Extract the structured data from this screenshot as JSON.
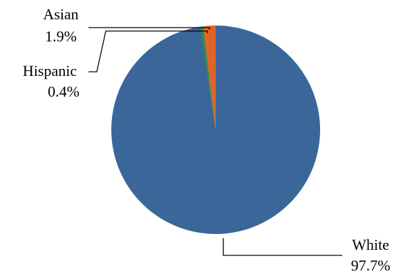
{
  "chart_data": {
    "type": "pie",
    "slices": [
      {
        "label": "White",
        "value": 97.7,
        "value_label": "97.7%",
        "color": "#3A6699"
      },
      {
        "label": "Hispanic",
        "value": 0.4,
        "value_label": "0.4%",
        "color": "#2E8B3A"
      },
      {
        "label": "Asian",
        "value": 1.9,
        "value_label": "1.9%",
        "color": "#E0642A"
      }
    ],
    "start": "12 o'clock",
    "direction": "clockwise",
    "legend": "none",
    "labels": "outside with leader lines"
  }
}
